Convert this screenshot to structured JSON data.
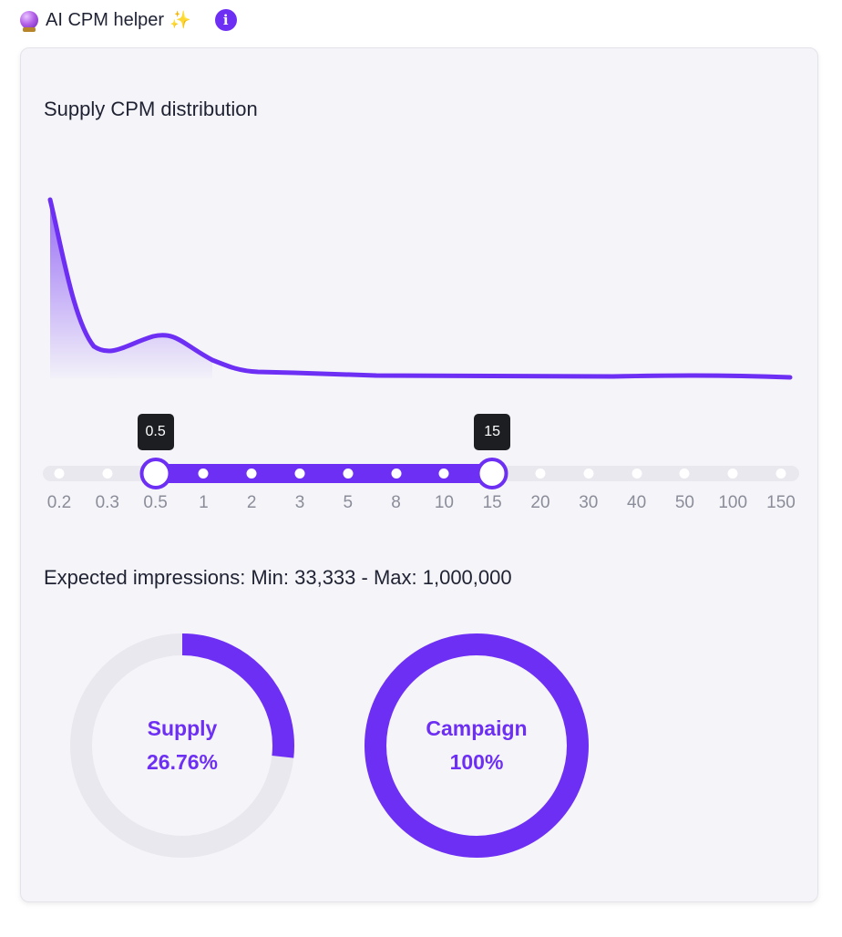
{
  "header": {
    "title": "AI CPM helper",
    "sparkle": "✨",
    "info_icon": "i"
  },
  "distribution": {
    "title": "Supply CPM distribution",
    "color": "#6e2ff4"
  },
  "slider": {
    "ticks": [
      "0.2",
      "0.3",
      "0.5",
      "1",
      "2",
      "3",
      "5",
      "8",
      "10",
      "15",
      "20",
      "30",
      "40",
      "50",
      "100",
      "150"
    ],
    "min_value": "0.5",
    "max_value": "15",
    "min_index": 2,
    "max_index": 9,
    "accent": "#6e2ff4"
  },
  "impressions": {
    "text": "Expected impressions: Min: 33,333 - Max: 1,000,000"
  },
  "donuts": [
    {
      "name": "Supply",
      "value_text": "26.76%",
      "fraction": 0.2676
    },
    {
      "name": "Campaign",
      "value_text": "100%",
      "fraction": 1.0
    }
  ],
  "colors": {
    "accent": "#6e2ff4",
    "track": "#e8e8ee",
    "card_bg": "#f5f5f9"
  }
}
